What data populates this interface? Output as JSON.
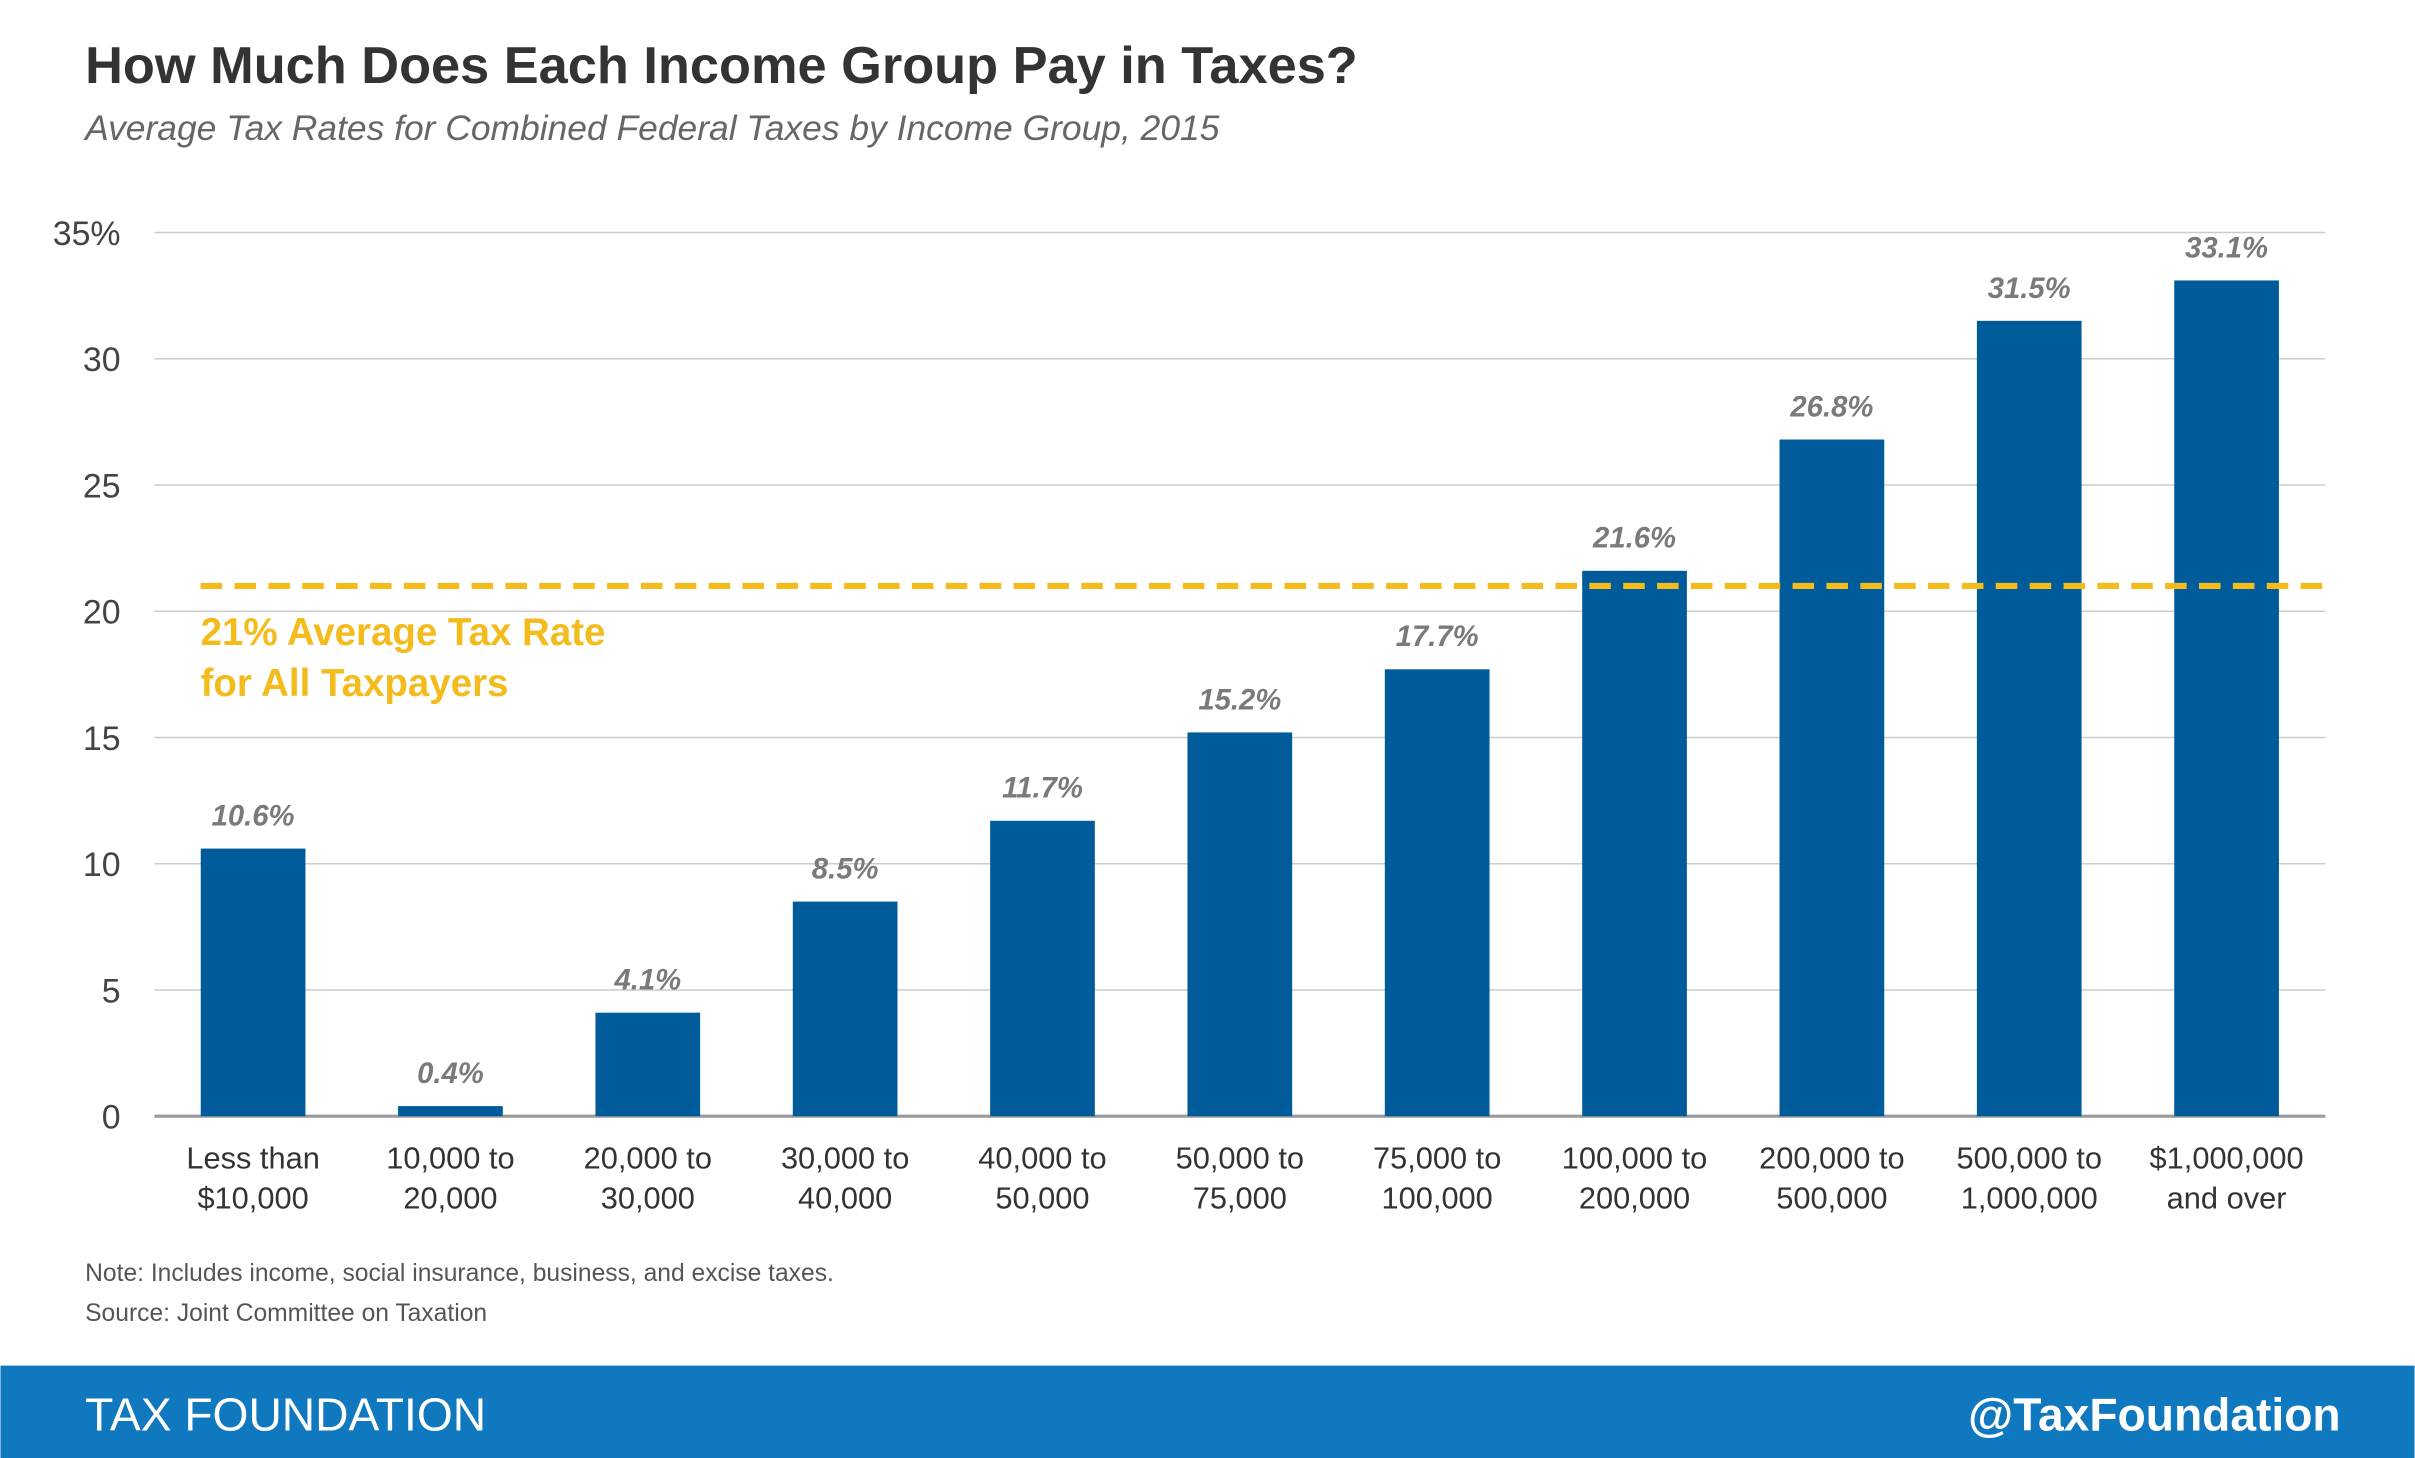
{
  "chart_data": {
    "type": "bar",
    "title": "How Much Does Each Income Group Pay in Taxes?",
    "subtitle": "Average Tax Rates for Combined Federal Taxes by Income Group, 2015",
    "categories": [
      [
        "Less than",
        "$10,000"
      ],
      [
        "10,000 to",
        "20,000"
      ],
      [
        "20,000 to",
        "30,000"
      ],
      [
        "30,000 to",
        "40,000"
      ],
      [
        "40,000 to",
        "50,000"
      ],
      [
        "50,000 to",
        "75,000"
      ],
      [
        "75,000 to",
        "100,000"
      ],
      [
        "100,000 to",
        "200,000"
      ],
      [
        "200,000 to",
        "500,000"
      ],
      [
        "500,000 to",
        "1,000,000"
      ],
      [
        "$1,000,000",
        "and over"
      ]
    ],
    "values": [
      10.6,
      0.4,
      4.1,
      8.5,
      11.7,
      15.2,
      17.7,
      21.6,
      26.8,
      31.5,
      33.1
    ],
    "value_labels": [
      "10.6%",
      "0.4%",
      "4.1%",
      "8.5%",
      "11.7%",
      "15.2%",
      "17.7%",
      "21.6%",
      "26.8%",
      "31.5%",
      "33.1%"
    ],
    "color": "#005b9a",
    "ylim": [
      0,
      35
    ],
    "yticks": [
      0,
      5,
      10,
      15,
      20,
      25,
      30,
      {
        "value": 35,
        "label": "35%"
      }
    ],
    "grid": true,
    "reference_line": {
      "value": 21,
      "color": "#f3bb1c",
      "label": [
        "21% Average Tax Rate",
        "for All Taxpayers"
      ]
    },
    "notes": [
      "Note: Includes income, social insurance, business, and excise taxes.",
      "Source: Joint Committee on Taxation"
    ],
    "footer": {
      "left": "TAX FOUNDATION",
      "right": "@TaxFoundation"
    }
  }
}
